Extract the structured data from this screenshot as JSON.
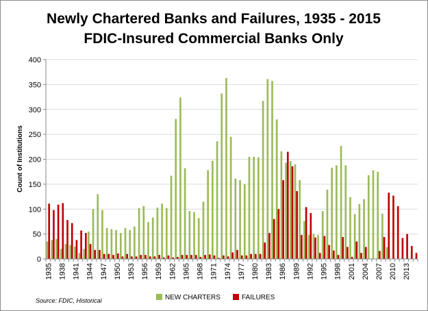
{
  "chart_data": {
    "type": "bar",
    "title_line1": "Newly Chartered Banks and Failures, 1935 - 2015",
    "title_line2": "FDIC-Insured Commercial Banks Only",
    "ylabel": "Count of Institutions",
    "xlabel": "",
    "ylim": [
      0,
      400
    ],
    "yticks": [
      0,
      50,
      100,
      150,
      200,
      250,
      300,
      350,
      400
    ],
    "grid": true,
    "legend_position": "bottom",
    "source": "Source: FDIC, Historical",
    "x_tick_labels": [
      "1935",
      "1938",
      "1941",
      "1944",
      "1947",
      "1950",
      "1953",
      "1956",
      "1959",
      "1962",
      "1965",
      "1968",
      "1971",
      "1974",
      "1977",
      "1980",
      "1983",
      "1986",
      "1989",
      "1992",
      "1995",
      "1998",
      "2001",
      "2004",
      "2007",
      "2010",
      "2013"
    ],
    "categories": [
      1935,
      1936,
      1937,
      1938,
      1939,
      1940,
      1941,
      1942,
      1943,
      1944,
      1945,
      1946,
      1947,
      1948,
      1949,
      1950,
      1951,
      1952,
      1953,
      1954,
      1955,
      1956,
      1957,
      1958,
      1959,
      1960,
      1961,
      1962,
      1963,
      1964,
      1965,
      1966,
      1967,
      1968,
      1969,
      1970,
      1971,
      1972,
      1973,
      1974,
      1975,
      1976,
      1977,
      1978,
      1979,
      1980,
      1981,
      1982,
      1983,
      1984,
      1985,
      1986,
      1987,
      1988,
      1989,
      1990,
      1991,
      1992,
      1993,
      1994,
      1995,
      1996,
      1997,
      1998,
      1999,
      2000,
      2001,
      2002,
      2003,
      2004,
      2005,
      2006,
      2007,
      2008,
      2009,
      2010,
      2011,
      2012,
      2013,
      2014,
      2015
    ],
    "series": [
      {
        "name": "NEW CHARTERS",
        "color": "#9bbb59",
        "values": [
          35,
          38,
          40,
          20,
          30,
          28,
          25,
          12,
          20,
          55,
          100,
          130,
          98,
          62,
          60,
          58,
          52,
          62,
          58,
          65,
          102,
          106,
          74,
          83,
          103,
          111,
          102,
          167,
          281,
          324,
          182,
          96,
          94,
          82,
          115,
          178,
          197,
          236,
          332,
          363,
          245,
          161,
          158,
          150,
          205,
          205,
          204,
          317,
          361,
          357,
          280,
          216,
          193,
          196,
          190,
          158,
          76,
          48,
          50,
          48,
          96,
          139,
          183,
          188,
          227,
          188,
          124,
          90,
          110,
          120,
          168,
          178,
          175,
          91,
          24,
          0,
          0,
          0,
          0,
          0,
          0
        ]
      },
      {
        "name": "FAILURES",
        "color": "#c00000",
        "values": [
          111,
          98,
          109,
          112,
          78,
          72,
          38,
          57,
          52,
          30,
          18,
          18,
          10,
          10,
          8,
          11,
          5,
          10,
          5,
          5,
          8,
          8,
          5,
          5,
          8,
          3,
          7,
          3,
          4,
          8,
          8,
          8,
          8,
          4,
          8,
          9,
          7,
          2,
          7,
          5,
          13,
          18,
          7,
          7,
          10,
          10,
          10,
          33,
          52,
          80,
          100,
          158,
          215,
          186,
          136,
          48,
          104,
          92,
          43,
          12,
          46,
          28,
          17,
          8,
          44,
          24,
          4,
          35,
          12,
          24,
          0,
          0,
          16,
          44,
          133,
          127,
          106,
          42,
          50,
          26,
          12
        ]
      }
    ]
  }
}
